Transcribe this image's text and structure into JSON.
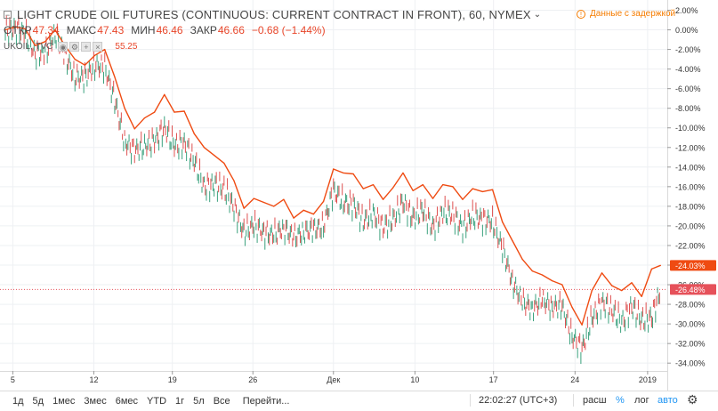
{
  "header": {
    "collapse_glyph": "−",
    "title": "LIGHT CRUDE OIL FUTURES (CONTINUOUS: CURRENT CONTRACT IN FRONT), 60, NYMEX",
    "title_chevron": "⌄",
    "ohlc": {
      "open_label": "ОТКР",
      "open_value": "47.34",
      "high_label": "МАКС",
      "high_value": "47.43",
      "low_label": "МИН",
      "low_value": "46.46",
      "close_label": "ЗАКР",
      "close_value": "46.66",
      "change": "−0.68 (−1.44%)"
    },
    "compare": {
      "symbol": "UKOIL",
      "suffix": ", TVC",
      "value": "55.25"
    },
    "delay_notice": "Данные с задержкой",
    "delay_icon": "!"
  },
  "colors": {
    "ukoil_line": "#ef4b12",
    "bar_up": "#3aa17d",
    "bar_down": "#de5151",
    "bar_neutral": "#888888",
    "badge_ukoil": "#ef4b12",
    "badge_cl": "#e6515a",
    "grid": "#eef0f3",
    "dash_line": "#e6515a"
  },
  "chart_data": {
    "type": "line",
    "ylabel": "",
    "ylim": [
      -34.8,
      2.5
    ],
    "y_ticks": [
      "2.00%",
      "0.00%",
      "-2.00%",
      "-4.00%",
      "-6.00%",
      "-8.00%",
      "-10.00%",
      "-12.00%",
      "-14.00%",
      "-16.00%",
      "-18.00%",
      "-20.00%",
      "-22.00%",
      "-24.00%",
      "-26.00%",
      "-28.00%",
      "-30.00%",
      "-32.00%",
      "-34.00%"
    ],
    "x_tick_labels": [
      "5",
      "12",
      "19",
      "26",
      "Дек",
      "10",
      "17",
      "24",
      "2019"
    ],
    "x_tick_positions": [
      0.75,
      8.9,
      16.8,
      24.9,
      33,
      41.2,
      49.1,
      57.3,
      64.6
    ],
    "xlim": [
      0,
      66.4
    ],
    "series": [
      {
        "name": "UKOIL",
        "style": "line",
        "x": [
          0,
          1,
          2,
          3,
          4,
          5,
          6,
          7,
          8,
          9,
          10,
          11,
          12,
          13,
          14,
          15,
          16,
          17,
          18,
          19,
          20,
          21,
          22,
          23,
          24,
          25,
          26,
          27,
          28,
          29,
          30,
          31,
          32,
          33,
          34,
          35,
          36,
          37,
          38,
          39,
          40,
          41,
          42,
          43,
          44,
          45,
          46,
          47,
          48,
          49,
          50,
          51,
          52,
          53,
          54,
          55,
          56,
          57,
          58,
          59,
          60,
          61,
          62,
          63,
          64,
          65,
          65.9
        ],
        "values": [
          0.0,
          0.3,
          0.1,
          -1.6,
          -1.2,
          0.0,
          -1.6,
          -3.0,
          -3.6,
          -2.6,
          -2.0,
          -4.8,
          -8.0,
          -10.1,
          -9.0,
          -8.4,
          -6.6,
          -8.4,
          -8.3,
          -10.6,
          -12.0,
          -12.8,
          -13.6,
          -15.4,
          -18.2,
          -17.2,
          -17.6,
          -18.0,
          -17.3,
          -19.2,
          -18.4,
          -18.8,
          -17.5,
          -14.2,
          -14.6,
          -14.7,
          -16.2,
          -15.8,
          -17.3,
          -16.1,
          -14.6,
          -16.4,
          -15.8,
          -17.2,
          -15.8,
          -16.0,
          -17.3,
          -16.2,
          -16.5,
          -16.3,
          -19.6,
          -21.5,
          -23.4,
          -24.6,
          -25.0,
          -25.6,
          -26.0,
          -28.3,
          -30.1,
          -26.6,
          -24.8,
          -26.1,
          -26.6,
          -25.8,
          -27.2,
          -24.4,
          -24.03
        ]
      },
      {
        "name": "CL1!",
        "style": "bars",
        "x": [
          0,
          1,
          2,
          3,
          4,
          5,
          6,
          7,
          8,
          9,
          10,
          11,
          12,
          13,
          14,
          15,
          16,
          17,
          18,
          19,
          20,
          21,
          22,
          23,
          24,
          25,
          26,
          27,
          28,
          29,
          30,
          31,
          32,
          33,
          34,
          35,
          36,
          37,
          38,
          39,
          40,
          41,
          42,
          43,
          44,
          45,
          46,
          47,
          48,
          49,
          50,
          51,
          52,
          53,
          54,
          55,
          56,
          57,
          58,
          59,
          60,
          61,
          62,
          63,
          64,
          65,
          65.9
        ],
        "values": [
          -0.2,
          0.2,
          -0.4,
          -2.4,
          -2.4,
          -0.4,
          -2.6,
          -4.8,
          -4.9,
          -3.6,
          -3.8,
          -7.2,
          -11.4,
          -12.4,
          -11.8,
          -11.4,
          -10.0,
          -11.8,
          -11.6,
          -13.4,
          -16.0,
          -15.8,
          -16.2,
          -18.2,
          -20.6,
          -20.0,
          -20.6,
          -21.0,
          -20.2,
          -21.2,
          -20.6,
          -20.4,
          -20.0,
          -16.4,
          -17.6,
          -17.8,
          -19.6,
          -18.7,
          -20.2,
          -19.3,
          -17.6,
          -19.2,
          -18.4,
          -20.2,
          -18.6,
          -18.9,
          -20.2,
          -19.0,
          -19.4,
          -19.5,
          -22.4,
          -25.6,
          -27.8,
          -28.4,
          -27.6,
          -28.2,
          -28.3,
          -31.2,
          -32.6,
          -29.4,
          -27.8,
          -28.6,
          -29.8,
          -28.2,
          -29.6,
          -29.4,
          -26.48
        ]
      }
    ],
    "last_values": [
      {
        "series": "UKOIL",
        "label": "-24.03%",
        "value": -24.03
      },
      {
        "series": "CL1!",
        "label": "-26.48%",
        "value": -26.48
      }
    ],
    "grid": true
  },
  "bottom": {
    "timeframes": [
      "1д",
      "5д",
      "1мес",
      "3мес",
      "6мес",
      "YTD",
      "1г",
      "5л",
      "Все"
    ],
    "goto": "Перейти...",
    "clock": "22:02:27 (UTC+3)",
    "scale_rasch": "расш",
    "scale_percent": "%",
    "scale_log": "лог",
    "scale_auto": "авто",
    "settings_icon": "gear-icon",
    "settings_glyph": "⚙"
  }
}
